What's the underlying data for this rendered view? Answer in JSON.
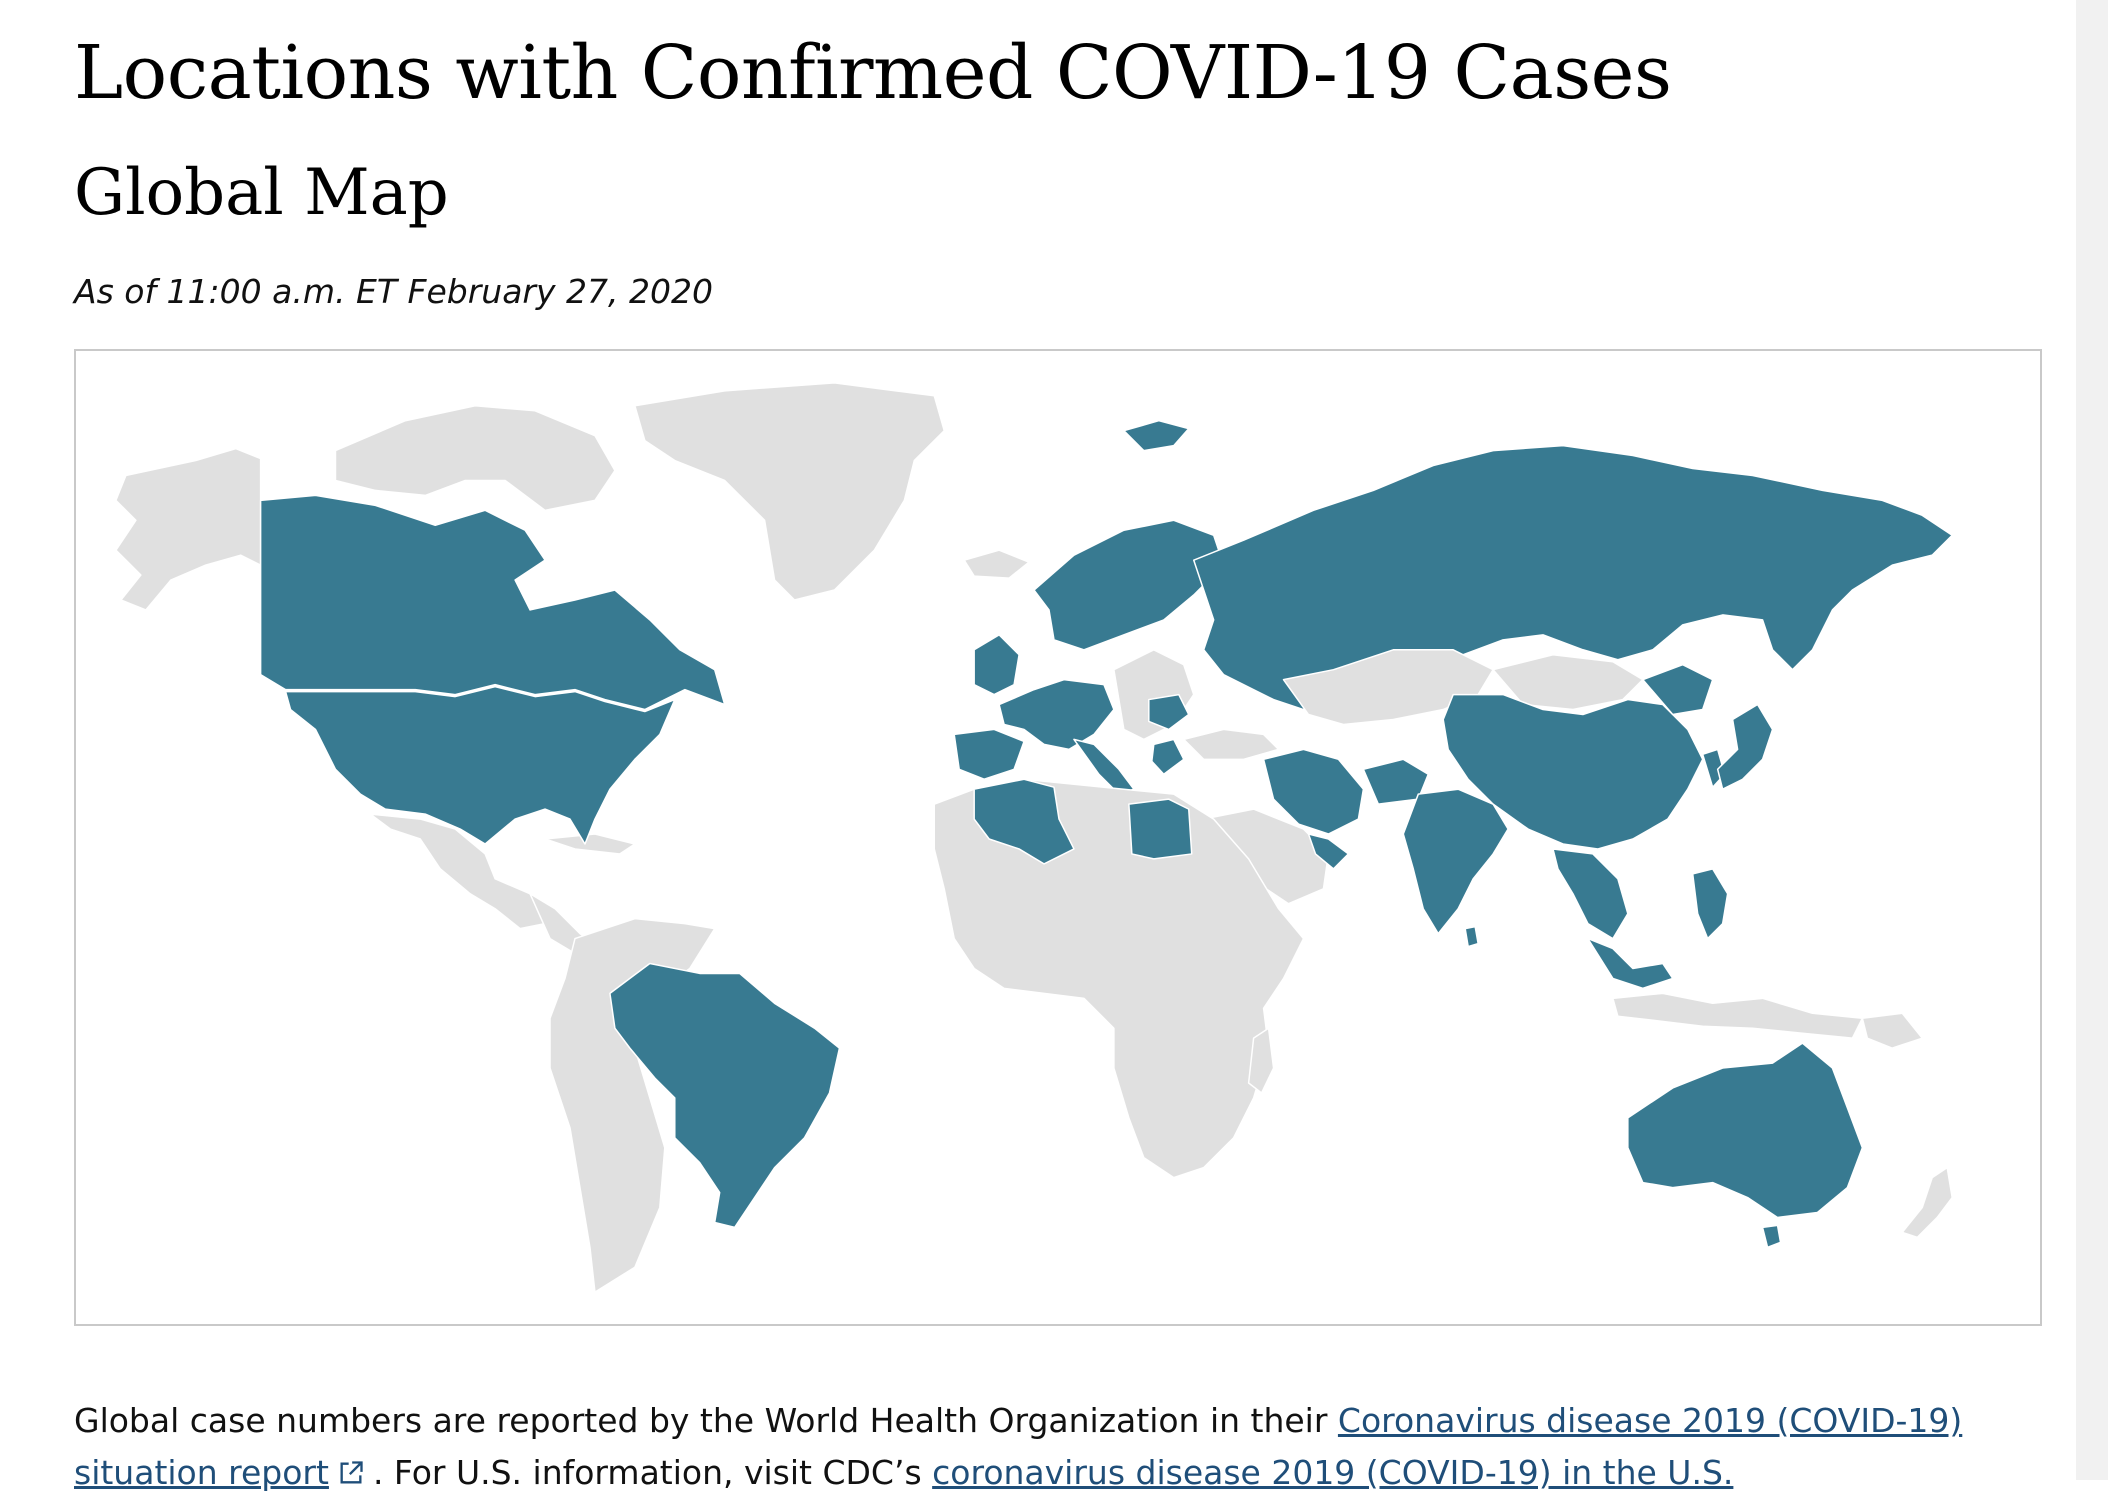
{
  "page": {
    "title": "Locations with Confirmed COVID-19 Cases",
    "subtitle": "Global Map",
    "as_of": "As of 11:00 a.m. ET February 27, 2020"
  },
  "map": {
    "colors": {
      "confirmed_cases": "#387a91",
      "no_cases": "#e0e0e0",
      "border": "#ffffff",
      "frame": "#c9c9c9"
    }
  },
  "footnote": {
    "text_before": "Global case numbers are reported by the World Health Organization in their ",
    "who_link": "Coronavirus disease 2019 (COVID-19) situation report",
    "external_icon": "external-link-icon",
    "text_middle": ". For U.S. information, visit CDC’s ",
    "cdc_link": "coronavirus disease 2019 (COVID-19) in the U.S."
  }
}
